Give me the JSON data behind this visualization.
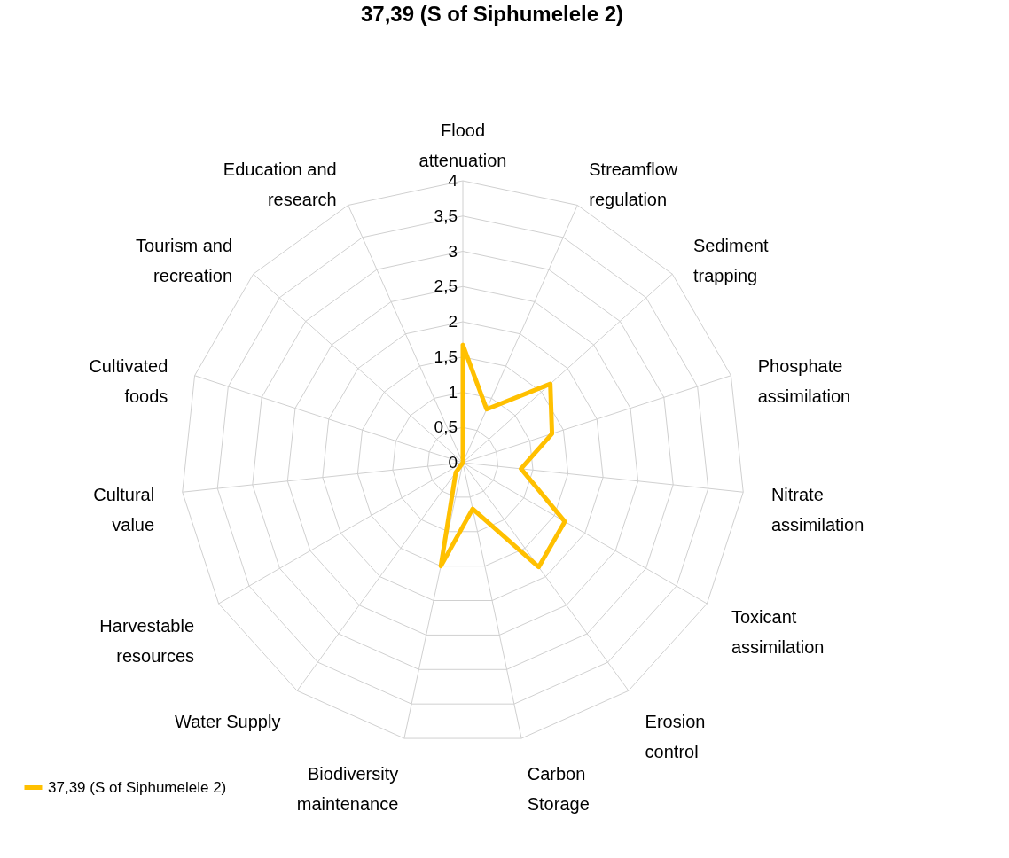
{
  "chart_data": {
    "type": "radar",
    "title": "37,39 (S of Siphumelele 2)",
    "categories": [
      "Flood attenuation",
      "Streamflow regulation",
      "Sediment trapping",
      "Phosphate assimilation",
      "Nitrate assimilation",
      "Toxicant assimilation",
      "Erosion control",
      "Carbon Storage",
      "Biodiversity maintenance",
      "Water Supply",
      "Harvestable resources",
      "Cultural value",
      "Cultivated foods",
      "Tourism and recreation",
      "Education and research"
    ],
    "series": [
      {
        "name": "37,39 (S of Siphumelele 2)",
        "color": "#ffc000",
        "values": [
          1.67,
          0.83,
          1.67,
          1.33,
          0.83,
          1.67,
          1.83,
          0.67,
          1.5,
          0.17,
          0,
          0,
          0,
          0,
          0
        ]
      }
    ],
    "ylim": [
      0,
      4
    ],
    "yticks": [
      0,
      {
        "value": 0.5,
        "label": "0,5"
      },
      1,
      {
        "value": 1.5,
        "label": "1,5"
      },
      2,
      {
        "value": 2.5,
        "label": "2,5"
      },
      3,
      {
        "value": 3.5,
        "label": "3,5"
      },
      4
    ],
    "grid": true,
    "legend": "bottom left"
  }
}
